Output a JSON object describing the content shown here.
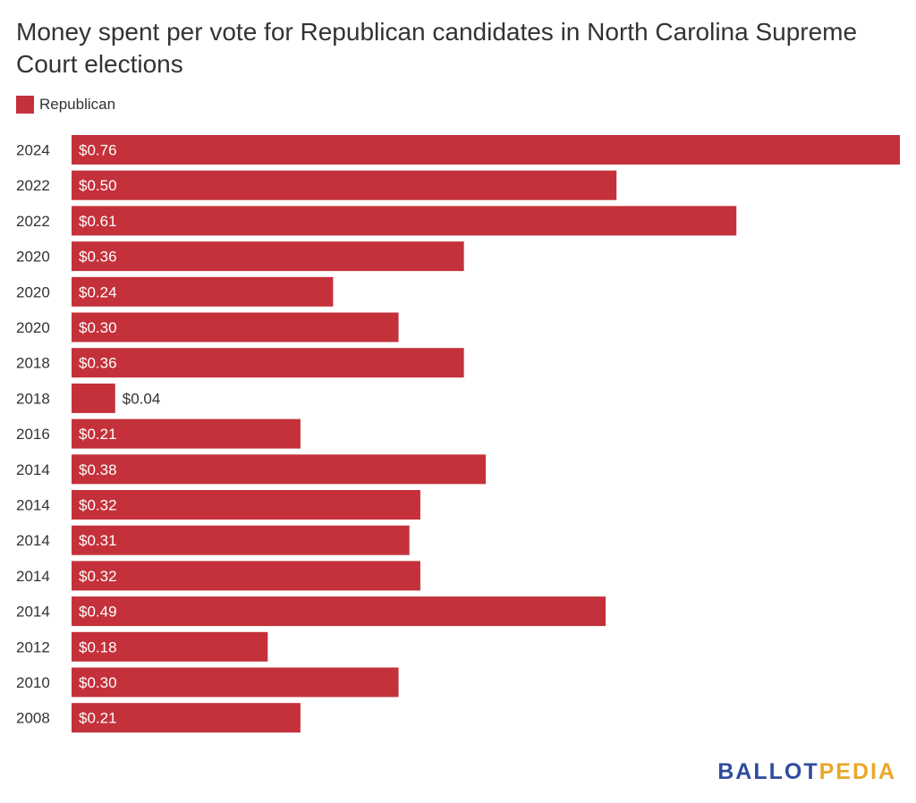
{
  "chart_data": {
    "type": "bar",
    "orientation": "horizontal",
    "title": "Money spent per vote for Republican candidates in North Carolina Supreme Court elections",
    "categories": [
      "2024",
      "2022",
      "2022",
      "2020",
      "2020",
      "2020",
      "2018",
      "2018",
      "2016",
      "2014",
      "2014",
      "2014",
      "2014",
      "2014",
      "2012",
      "2010",
      "2008"
    ],
    "series": [
      {
        "name": "Republican",
        "color": "#c4313a",
        "values": [
          0.76,
          0.5,
          0.61,
          0.36,
          0.24,
          0.3,
          0.36,
          0.04,
          0.21,
          0.38,
          0.32,
          0.31,
          0.32,
          0.49,
          0.18,
          0.3,
          0.21
        ],
        "labels": [
          "$0.76",
          "$0.50",
          "$0.61",
          "$0.36",
          "$0.24",
          "$0.30",
          "$0.36",
          "$0.04",
          "$0.21",
          "$0.38",
          "$0.32",
          "$0.31",
          "$0.32",
          "$0.49",
          "$0.18",
          "$0.30",
          "$0.21"
        ]
      }
    ],
    "xlim": [
      0,
      0.76
    ],
    "grid": false,
    "legend_position": "top-left"
  },
  "brand": {
    "part1": "BALLOT",
    "part2": "PEDIA"
  }
}
